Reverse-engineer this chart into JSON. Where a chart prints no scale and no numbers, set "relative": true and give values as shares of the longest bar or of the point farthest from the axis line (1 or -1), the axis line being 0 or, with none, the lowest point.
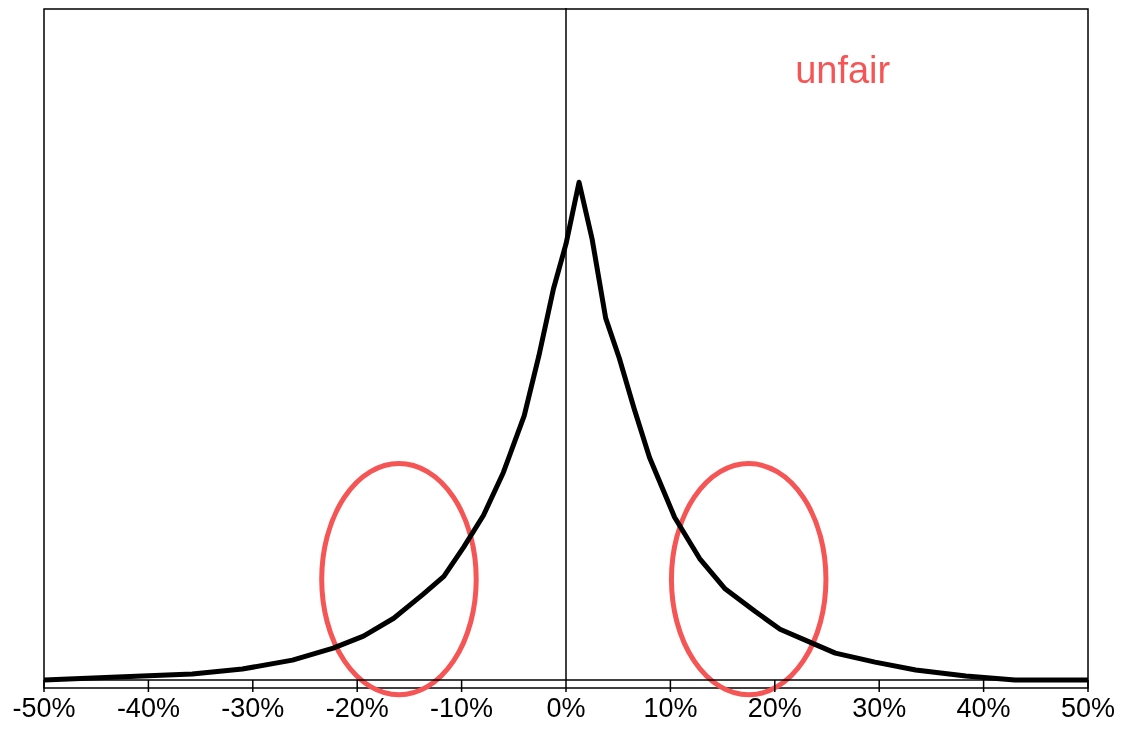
{
  "chart_data": {
    "type": "line",
    "relative": true,
    "annotations": [
      "unfair"
    ],
    "x": [
      -50,
      -40.6,
      -35.8,
      -31,
      -26.2,
      -22.3,
      -19.4,
      -16.5,
      -13.7,
      -11.7,
      -9.8,
      -7.9,
      -6,
      -4,
      -2.6,
      -1.2,
      0,
      1.25,
      2.5,
      3.8,
      5.1,
      6.5,
      8,
      10.4,
      12.8,
      15.2,
      18.1,
      20.5,
      23.8,
      25.8,
      29.6,
      33.5,
      38.3,
      43,
      50
    ],
    "series": [
      {
        "color": "#000000",
        "values": [
          0,
          0.008,
          0.012,
          0.022,
          0.04,
          0.064,
          0.088,
          0.124,
          0.172,
          0.208,
          0.267,
          0.331,
          0.417,
          0.531,
          0.651,
          0.786,
          0.876,
          1,
          0.886,
          0.727,
          0.647,
          0.547,
          0.447,
          0.327,
          0.244,
          0.184,
          0.138,
          0.102,
          0.072,
          0.054,
          0.036,
          0.02,
          0.008,
          0,
          0
        ]
      }
    ],
    "xlim": [
      -50,
      50
    ],
    "xticks": [
      {
        "value": -50,
        "label": "-50%"
      },
      {
        "value": -40,
        "label": "-40%"
      },
      {
        "value": -30,
        "label": "-30%"
      },
      {
        "value": -20,
        "label": "-20%"
      },
      {
        "value": -10,
        "label": "-10%"
      },
      {
        "value": 0,
        "label": "0%"
      },
      {
        "value": 10,
        "label": "10%"
      },
      {
        "value": 20,
        "label": "20%"
      },
      {
        "value": 30,
        "label": "30%"
      },
      {
        "value": 40,
        "label": "40%"
      },
      {
        "value": 50,
        "label": "50%"
      }
    ],
    "ref_lines": [
      {
        "axis": "x",
        "value": 0,
        "color": "#000000"
      }
    ],
    "legend": false,
    "grid": false,
    "marker": "none",
    "line_style": "solid"
  }
}
